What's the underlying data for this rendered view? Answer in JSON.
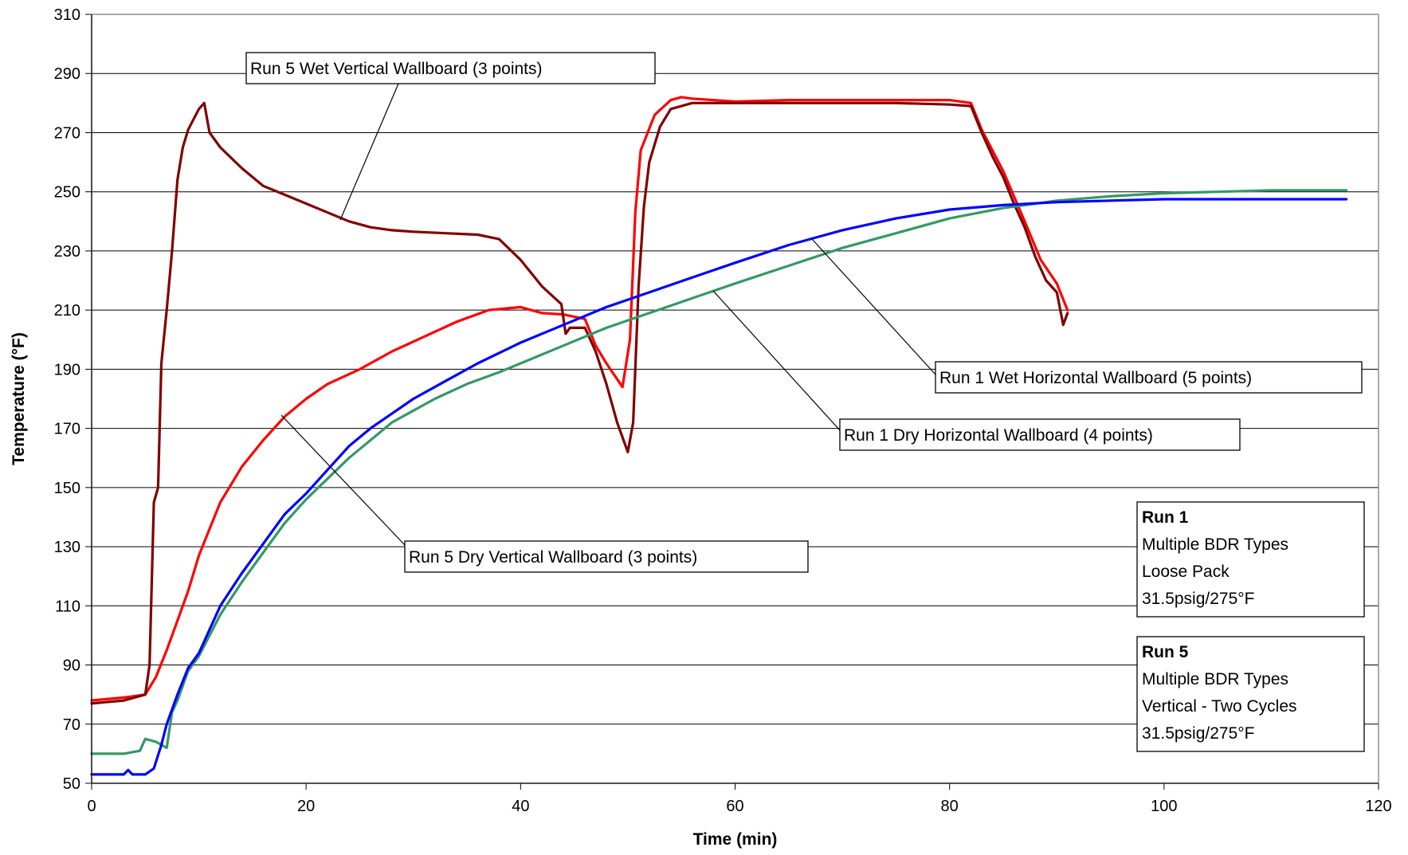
{
  "chart_data": {
    "type": "line",
    "title": "",
    "xlabel": "Time (min)",
    "ylabel": "Temperature (°F)",
    "xlim": [
      0,
      120
    ],
    "ylim": [
      50,
      310
    ],
    "x_ticks": [
      "0",
      "20",
      "40",
      "60",
      "80",
      "100",
      "120"
    ],
    "y_ticks": [
      "50",
      "70",
      "90",
      "110",
      "130",
      "150",
      "170",
      "190",
      "210",
      "230",
      "250",
      "270",
      "290",
      "310"
    ],
    "grid": "horizontal",
    "series": [
      {
        "name": "Run 5 Dry Vertical Wallboard (3 points)",
        "color": "#ff0000",
        "points": [
          [
            0,
            78
          ],
          [
            3,
            79
          ],
          [
            5,
            80
          ],
          [
            6,
            86
          ],
          [
            7,
            95
          ],
          [
            8,
            105
          ],
          [
            9,
            115
          ],
          [
            10,
            127
          ],
          [
            11,
            136
          ],
          [
            12,
            145
          ],
          [
            14,
            157
          ],
          [
            16,
            166
          ],
          [
            18,
            174
          ],
          [
            20,
            180
          ],
          [
            22,
            185
          ],
          [
            25,
            190
          ],
          [
            28,
            196
          ],
          [
            31,
            201
          ],
          [
            34,
            206
          ],
          [
            37,
            210
          ],
          [
            40,
            211
          ],
          [
            42,
            209
          ],
          [
            44,
            208.5
          ],
          [
            46,
            207
          ],
          [
            47,
            198
          ],
          [
            48,
            192
          ],
          [
            49.5,
            184
          ],
          [
            50.2,
            200
          ],
          [
            50.7,
            243
          ],
          [
            51.2,
            264
          ],
          [
            52.5,
            276
          ],
          [
            54,
            281
          ],
          [
            55,
            282
          ],
          [
            56,
            281.5
          ],
          [
            60,
            280.5
          ],
          [
            65,
            281
          ],
          [
            70,
            281
          ],
          [
            75,
            281
          ],
          [
            80,
            281
          ],
          [
            82,
            280
          ],
          [
            83,
            271
          ],
          [
            85,
            257
          ],
          [
            87,
            240
          ],
          [
            88.5,
            227
          ],
          [
            90,
            219
          ],
          [
            91,
            210
          ]
        ]
      },
      {
        "name": "Run 5 Wet Vertical Wallboard (3 points)",
        "color": "#800000",
        "points": [
          [
            0,
            77
          ],
          [
            3,
            78
          ],
          [
            5,
            80
          ],
          [
            5.4,
            90
          ],
          [
            5.8,
            145
          ],
          [
            6.2,
            150
          ],
          [
            6.5,
            192
          ],
          [
            7,
            210
          ],
          [
            7.5,
            230
          ],
          [
            8,
            254
          ],
          [
            8.5,
            265
          ],
          [
            9,
            271
          ],
          [
            10,
            278
          ],
          [
            10.5,
            280
          ],
          [
            11,
            270
          ],
          [
            12,
            265
          ],
          [
            14,
            258
          ],
          [
            16,
            252
          ],
          [
            18,
            249
          ],
          [
            20,
            246
          ],
          [
            22,
            243
          ],
          [
            24,
            240
          ],
          [
            26,
            238
          ],
          [
            28,
            237
          ],
          [
            30,
            236.5
          ],
          [
            33,
            236
          ],
          [
            36,
            235.5
          ],
          [
            38,
            234
          ],
          [
            40,
            227
          ],
          [
            42,
            218
          ],
          [
            43.8,
            212
          ],
          [
            44.2,
            202
          ],
          [
            44.6,
            204
          ],
          [
            46,
            204
          ],
          [
            47,
            196
          ],
          [
            48,
            185
          ],
          [
            49,
            172
          ],
          [
            50,
            162
          ],
          [
            50.5,
            172
          ],
          [
            51,
            218
          ],
          [
            51.5,
            245
          ],
          [
            52,
            260
          ],
          [
            53,
            272
          ],
          [
            54,
            278
          ],
          [
            56,
            280
          ],
          [
            60,
            280
          ],
          [
            65,
            280
          ],
          [
            70,
            280
          ],
          [
            75,
            280
          ],
          [
            80,
            279.5
          ],
          [
            82,
            279
          ],
          [
            83,
            270
          ],
          [
            84,
            262
          ],
          [
            85,
            255
          ],
          [
            86,
            246
          ],
          [
            87,
            238
          ],
          [
            88,
            228
          ],
          [
            89,
            220
          ],
          [
            90,
            216
          ],
          [
            90.6,
            205
          ],
          [
            91,
            209
          ]
        ]
      },
      {
        "name": "Run 1 Dry Horizontal Wallboard (4 points)",
        "color": "#339966",
        "points": [
          [
            0,
            60
          ],
          [
            3,
            60
          ],
          [
            4.5,
            61
          ],
          [
            5,
            65
          ],
          [
            6,
            64
          ],
          [
            7,
            62
          ],
          [
            7.5,
            74
          ],
          [
            8,
            78
          ],
          [
            9,
            88
          ],
          [
            10,
            93
          ],
          [
            12,
            107
          ],
          [
            14,
            118
          ],
          [
            16,
            128
          ],
          [
            18,
            138
          ],
          [
            20,
            146
          ],
          [
            22,
            153
          ],
          [
            24,
            160
          ],
          [
            26,
            166
          ],
          [
            28,
            172
          ],
          [
            30,
            176
          ],
          [
            32,
            180
          ],
          [
            35,
            185
          ],
          [
            38,
            189
          ],
          [
            40,
            192
          ],
          [
            44,
            198
          ],
          [
            48,
            204
          ],
          [
            52,
            209
          ],
          [
            56,
            214
          ],
          [
            60,
            219
          ],
          [
            65,
            225
          ],
          [
            70,
            231
          ],
          [
            75,
            236
          ],
          [
            80,
            241
          ],
          [
            85,
            244.5
          ],
          [
            90,
            247
          ],
          [
            95,
            248.5
          ],
          [
            100,
            249.5
          ],
          [
            105,
            250
          ],
          [
            110,
            250.5
          ],
          [
            117,
            250.5
          ]
        ]
      },
      {
        "name": "Run 1 Wet Horizontal Wallboard (5 points)",
        "color": "#0000ff",
        "points": [
          [
            0,
            53
          ],
          [
            3,
            53
          ],
          [
            3.4,
            54.5
          ],
          [
            3.8,
            53
          ],
          [
            5,
            53
          ],
          [
            5.8,
            55
          ],
          [
            6.5,
            63
          ],
          [
            7,
            70
          ],
          [
            8,
            80
          ],
          [
            9,
            89
          ],
          [
            10,
            94
          ],
          [
            12,
            110
          ],
          [
            14,
            121
          ],
          [
            16,
            131
          ],
          [
            18,
            141
          ],
          [
            20,
            148
          ],
          [
            22,
            156
          ],
          [
            24,
            164
          ],
          [
            26,
            170
          ],
          [
            28,
            175
          ],
          [
            30,
            180
          ],
          [
            33,
            186
          ],
          [
            36,
            192
          ],
          [
            40,
            199
          ],
          [
            44,
            205
          ],
          [
            48,
            211
          ],
          [
            52,
            216
          ],
          [
            56,
            221
          ],
          [
            60,
            226
          ],
          [
            65,
            232
          ],
          [
            70,
            237
          ],
          [
            75,
            241
          ],
          [
            80,
            244
          ],
          [
            85,
            245.5
          ],
          [
            90,
            246.5
          ],
          [
            95,
            247
          ],
          [
            100,
            247.5
          ],
          [
            105,
            247.5
          ],
          [
            110,
            247.5
          ],
          [
            117,
            247.5
          ]
        ]
      }
    ],
    "annotations": [
      {
        "text": "Run 5 Wet Vertical Wallboard (3 points)"
      },
      {
        "text": "Run 5 Dry Vertical Wallboard (3 points)"
      },
      {
        "text": "Run 1 Wet Horizontal Wallboard (5 points)"
      },
      {
        "text": "Run 1 Dry Horizontal Wallboard (4 points)"
      }
    ],
    "info_boxes": [
      {
        "title": "Run 1",
        "lines": [
          "Multiple BDR Types",
          "Loose Pack",
          "31.5psig/275°F"
        ]
      },
      {
        "title": "Run 5",
        "lines": [
          "Multiple BDR Types",
          "Vertical - Two Cycles",
          "31.5psig/275°F"
        ]
      }
    ]
  }
}
